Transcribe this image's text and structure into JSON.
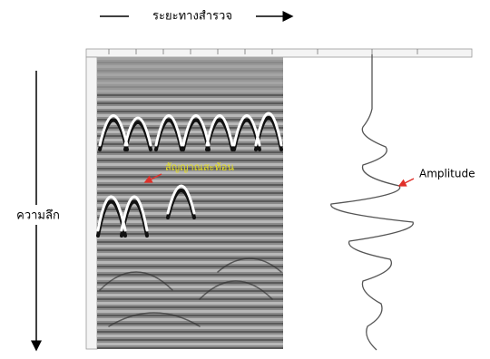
{
  "header": {
    "title": "ระยะทางสำรวจ"
  },
  "axes": {
    "depth_label": "ความลึก"
  },
  "annotations": {
    "target_label": "สัญญาณสะท้อน",
    "amplitude_label": "Amplitude"
  }
}
